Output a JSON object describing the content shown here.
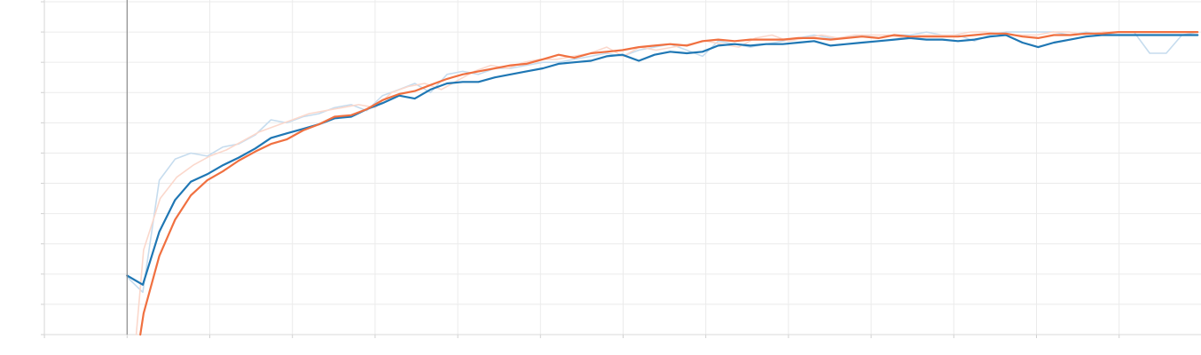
{
  "chart_data": {
    "type": "line",
    "title": "",
    "xlabel": "",
    "ylabel": "",
    "xlim": [
      -1,
      13
    ],
    "ylim": [
      0,
      1.1
    ],
    "x_gridlines": [
      0,
      1,
      2,
      3,
      4,
      5,
      6,
      7,
      8,
      9,
      10,
      11,
      12,
      13
    ],
    "y_gridlines": [
      0,
      0.1,
      0.2,
      0.3,
      0.4,
      0.5,
      0.6,
      0.7,
      0.8,
      0.9,
      1.0,
      1.1
    ],
    "grid": true,
    "cursor_x": 0,
    "colors": {
      "blue": "#1f77b4",
      "orange": "#f07040",
      "blue_raw": "#c6dcee",
      "orange_raw": "#fbd8cc"
    },
    "series": [
      {
        "color": "blue_raw",
        "x": [
          0,
          0.19,
          0.39,
          0.58,
          0.77,
          0.97,
          1.16,
          1.35,
          1.55,
          1.74,
          1.93,
          2.13,
          2.32,
          2.51,
          2.71,
          2.9,
          3.09,
          3.29,
          3.48,
          3.67,
          3.87,
          4.06,
          4.25,
          4.45,
          4.64,
          4.83,
          5.03,
          5.22,
          5.41,
          5.61,
          5.8,
          5.99,
          6.19,
          6.38,
          6.57,
          6.77,
          6.96,
          7.15,
          7.35,
          7.54,
          7.73,
          7.93,
          8.12,
          8.31,
          8.51,
          8.7,
          8.89,
          9.09,
          9.28,
          9.47,
          9.67,
          9.86,
          10.05,
          10.25,
          10.44,
          10.63,
          10.83,
          11.02,
          11.21,
          11.41,
          11.6,
          11.79,
          11.99,
          12.18,
          12.37,
          12.57,
          12.76,
          12.95
        ],
        "values": [
          0.19,
          0.14,
          0.51,
          0.58,
          0.6,
          0.59,
          0.62,
          0.63,
          0.66,
          0.71,
          0.7,
          0.72,
          0.73,
          0.75,
          0.76,
          0.74,
          0.79,
          0.81,
          0.83,
          0.8,
          0.86,
          0.87,
          0.86,
          0.88,
          0.88,
          0.89,
          0.9,
          0.9,
          0.91,
          0.92,
          0.93,
          0.92,
          0.94,
          0.95,
          0.96,
          0.94,
          0.92,
          0.97,
          0.96,
          0.95,
          0.96,
          0.97,
          0.98,
          0.99,
          0.98,
          0.98,
          0.99,
          0.98,
          0.99,
          0.99,
          1.0,
          0.99,
          0.99,
          0.97,
          0.99,
          1.0,
          1.0,
          1.0,
          1.0,
          0.99,
          1.0,
          0.99,
          1.0,
          1.0,
          0.93,
          0.93,
          0.99,
          1.0
        ]
      },
      {
        "color": "orange_raw",
        "x": [
          0.11,
          0.2,
          0.4,
          0.6,
          0.8,
          1.0,
          1.2,
          1.4,
          1.6,
          1.8,
          2.0,
          2.2,
          2.4,
          2.6,
          2.8,
          3.0,
          3.2,
          3.4,
          3.6,
          3.8,
          4.0,
          4.2,
          4.4,
          4.6,
          4.8,
          5.0,
          5.2,
          5.4,
          5.6,
          5.8,
          6.0,
          6.2,
          6.4,
          6.6,
          6.8,
          7.0,
          7.2,
          7.4,
          7.6,
          7.8,
          8.0,
          8.2,
          8.4,
          8.6,
          8.8,
          9.0,
          9.2,
          9.4,
          9.6,
          9.8,
          10.0,
          10.2,
          10.4,
          10.6,
          10.8,
          11.0,
          11.2,
          11.4,
          11.6,
          11.8,
          12.0,
          12.2,
          12.4,
          12.6,
          12.8,
          12.95
        ],
        "values": [
          0.0,
          0.28,
          0.45,
          0.52,
          0.56,
          0.59,
          0.61,
          0.64,
          0.67,
          0.69,
          0.71,
          0.73,
          0.74,
          0.75,
          0.76,
          0.75,
          0.8,
          0.82,
          0.83,
          0.81,
          0.84,
          0.87,
          0.89,
          0.88,
          0.9,
          0.91,
          0.91,
          0.92,
          0.93,
          0.95,
          0.92,
          0.95,
          0.94,
          0.95,
          0.96,
          0.97,
          0.96,
          0.95,
          0.98,
          0.99,
          0.97,
          0.98,
          0.99,
          0.98,
          0.99,
          0.99,
          0.99,
          0.98,
          0.99,
          0.99,
          0.99,
          1.0,
          1.0,
          0.99,
          0.99,
          0.99,
          1.0,
          1.0,
          0.99,
          1.0,
          1.0,
          1.0,
          1.0,
          1.0,
          1.0,
          1.0
        ]
      },
      {
        "name": "",
        "color": "blue",
        "x": [
          0,
          0.19,
          0.39,
          0.58,
          0.77,
          0.97,
          1.16,
          1.35,
          1.55,
          1.74,
          1.93,
          2.13,
          2.32,
          2.51,
          2.71,
          2.9,
          3.09,
          3.29,
          3.48,
          3.67,
          3.87,
          4.06,
          4.25,
          4.45,
          4.64,
          4.83,
          5.03,
          5.22,
          5.41,
          5.61,
          5.8,
          5.99,
          6.19,
          6.38,
          6.57,
          6.77,
          6.96,
          7.15,
          7.35,
          7.54,
          7.73,
          7.93,
          8.12,
          8.31,
          8.51,
          8.7,
          8.89,
          9.09,
          9.28,
          9.47,
          9.67,
          9.86,
          10.05,
          10.25,
          10.44,
          10.63,
          10.83,
          11.02,
          11.21,
          11.41,
          11.6,
          11.79,
          11.99,
          12.18,
          12.37,
          12.57,
          12.76,
          12.95
        ],
        "values": [
          0.195,
          0.165,
          0.34,
          0.445,
          0.505,
          0.53,
          0.56,
          0.585,
          0.615,
          0.65,
          0.665,
          0.68,
          0.695,
          0.715,
          0.72,
          0.745,
          0.765,
          0.79,
          0.78,
          0.81,
          0.83,
          0.835,
          0.835,
          0.85,
          0.86,
          0.87,
          0.88,
          0.895,
          0.9,
          0.905,
          0.92,
          0.925,
          0.905,
          0.925,
          0.935,
          0.93,
          0.935,
          0.955,
          0.96,
          0.955,
          0.96,
          0.96,
          0.965,
          0.97,
          0.955,
          0.96,
          0.965,
          0.97,
          0.975,
          0.98,
          0.975,
          0.975,
          0.97,
          0.975,
          0.985,
          0.99,
          0.965,
          0.95,
          0.965,
          0.975,
          0.985,
          0.99,
          0.99,
          0.99,
          0.99,
          0.99,
          0.99,
          0.99
        ]
      },
      {
        "name": "",
        "color": "orange",
        "x": [
          0.16,
          0.2,
          0.39,
          0.58,
          0.77,
          0.97,
          1.16,
          1.35,
          1.55,
          1.74,
          1.93,
          2.13,
          2.32,
          2.51,
          2.71,
          2.9,
          3.09,
          3.29,
          3.48,
          3.67,
          3.87,
          4.06,
          4.25,
          4.45,
          4.64,
          4.83,
          5.03,
          5.22,
          5.41,
          5.61,
          5.8,
          5.99,
          6.19,
          6.38,
          6.57,
          6.77,
          6.96,
          7.15,
          7.35,
          7.54,
          7.73,
          7.93,
          8.12,
          8.31,
          8.51,
          8.7,
          8.89,
          9.09,
          9.28,
          9.47,
          9.67,
          9.86,
          10.05,
          10.25,
          10.44,
          10.63,
          10.83,
          11.02,
          11.21,
          11.41,
          11.6,
          11.79,
          11.99,
          12.18,
          12.37,
          12.57,
          12.76,
          12.95
        ],
        "values": [
          0.0,
          0.07,
          0.26,
          0.38,
          0.46,
          0.51,
          0.54,
          0.575,
          0.605,
          0.63,
          0.645,
          0.675,
          0.695,
          0.72,
          0.725,
          0.745,
          0.775,
          0.795,
          0.805,
          0.825,
          0.845,
          0.86,
          0.87,
          0.88,
          0.89,
          0.895,
          0.91,
          0.925,
          0.915,
          0.93,
          0.935,
          0.94,
          0.95,
          0.955,
          0.96,
          0.955,
          0.97,
          0.975,
          0.97,
          0.975,
          0.975,
          0.975,
          0.98,
          0.98,
          0.975,
          0.98,
          0.985,
          0.98,
          0.99,
          0.985,
          0.985,
          0.985,
          0.985,
          0.99,
          0.995,
          0.995,
          0.985,
          0.98,
          0.99,
          0.99,
          0.995,
          0.995,
          1.0,
          1.0,
          1.0,
          1.0,
          1.0,
          1.0
        ]
      }
    ]
  }
}
